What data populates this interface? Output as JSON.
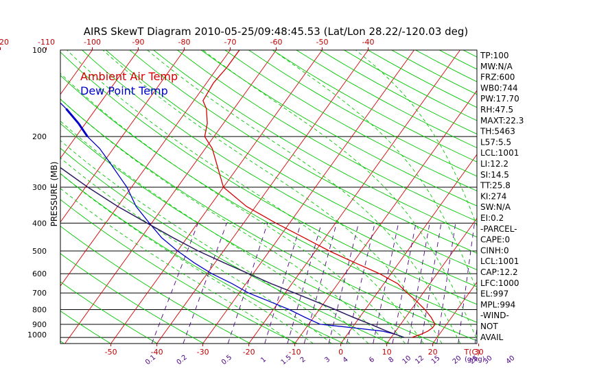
{
  "title": "AIRS SkewT Diagram 2010-05-25/09:48:45.53 (Lat/Lon 28.22/-120.03 deg)",
  "chart_data": {
    "type": "line",
    "title": "AIRS SkewT Diagram 2010-05-25/09:48:45.53 (Lat/Lon 28.22/-120.03 deg)",
    "ylabel": "PRESSURE (MB)",
    "y_scale": "log",
    "y_reversed": true,
    "ylim": [
      1050,
      100
    ],
    "pressure_ticks": [
      100,
      200,
      300,
      400,
      500,
      600,
      700,
      800,
      900,
      1000
    ],
    "top_temperature_ticks": [
      -120,
      -110,
      -100,
      -90,
      -80,
      -70,
      -60,
      -50,
      -40
    ],
    "bottom_temperature_ticks": [
      -50,
      -40,
      -30,
      -20,
      -10,
      0,
      10,
      20,
      30
    ],
    "bottom_temperature_unit": "T(C)",
    "mixing_ratio_ticks": [
      "0.1",
      "0.2",
      "0.5",
      "1",
      "1.5",
      "2",
      "3",
      "4",
      "6",
      "8",
      "10",
      "12",
      "15",
      "20",
      "25",
      "30",
      "40"
    ],
    "mixing_ratio_unit": "(g/kg)",
    "isotherm_step_c": 10,
    "skew_c_per_decade": 45,
    "grid": true,
    "legend": [
      "Ambient Air Temp",
      "Dew Point Temp"
    ],
    "legend_position": "top-left",
    "colors": {
      "ambient": "#d40000",
      "dewpoint": "#0000c8",
      "parcel": "#2a1a5e",
      "isotherm": "#d40000",
      "dry_adiabat": "#00c800",
      "moist_adiabat": "#00c800",
      "mixing_ratio": "#4b0082",
      "isobar": "#000000"
    },
    "series": [
      {
        "name": "Ambient Air Temp",
        "pressure": [
          1000,
          975,
          950,
          925,
          900,
          850,
          800,
          750,
          700,
          650,
          600,
          550,
          500,
          450,
          400,
          350,
          300,
          250,
          220,
          200,
          180,
          160,
          150,
          130,
          115,
          100
        ],
        "temperature": [
          14.5,
          16,
          17,
          17.5,
          17.5,
          15.5,
          13,
          10,
          6.5,
          3,
          -2.5,
          -9.5,
          -17,
          -24.5,
          -33,
          -42,
          -50,
          -55,
          -58.5,
          -62,
          -63.5,
          -66,
          -68,
          -68.5,
          -68,
          -68
        ]
      },
      {
        "name": "Dew Point Temp",
        "pressure": [
          1000,
          975,
          950,
          925,
          900,
          850,
          800,
          750,
          700,
          650,
          600,
          550,
          500,
          450,
          400,
          350,
          300,
          250,
          220,
          200,
          180,
          160,
          150,
          130,
          115,
          100
        ],
        "temperature": [
          12.8,
          10.5,
          7,
          0,
          -7.5,
          -12,
          -16.5,
          -22,
          -28,
          -33,
          -39,
          -44.5,
          -50,
          -55.5,
          -60.5,
          -66,
          -71,
          -78,
          -83,
          -87.5,
          -91.5,
          -96.5,
          -99.5,
          -104,
          -109,
          -115
        ]
      },
      {
        "name": "Parcel",
        "pressure": [
          1000,
          950,
          900,
          850,
          800,
          750,
          700,
          650,
          600,
          550,
          500,
          450,
          400,
          350,
          300,
          250,
          200,
          180,
          160,
          150,
          130,
          115,
          100
        ],
        "temperature": [
          12.8,
          8,
          3.5,
          -1.5,
          -6.5,
          -12,
          -18,
          -24.5,
          -31,
          -38,
          -45.5,
          -53,
          -61,
          -70,
          -79.5,
          -90,
          -101,
          -106,
          -111.5,
          -114.5,
          -121,
          -127,
          -133
        ]
      }
    ],
    "dewpoint_thick_segment": {
      "pressure_from": 200,
      "pressure_to": 160
    }
  },
  "indices": [
    "TP:100",
    "MW:N/A",
    "FRZ:600",
    "WB0:744",
    "PW:17.70",
    "RH:47.5",
    "MAXT:22.3",
    "TH:5463",
    "L57:5.5",
    "LCL:1001",
    "LI:12.2",
    "SI:14.5",
    "TT:25.8",
    "KI:274",
    "SW:N/A",
    "EI:0.2",
    "-PARCEL-",
    "CAPE:0",
    "CINH:0",
    "LCL:1001",
    "CAP:12.2",
    "LFC:1000",
    "EL:997",
    "MPL:994",
    "-WIND-",
    "NOT",
    "AVAIL"
  ]
}
